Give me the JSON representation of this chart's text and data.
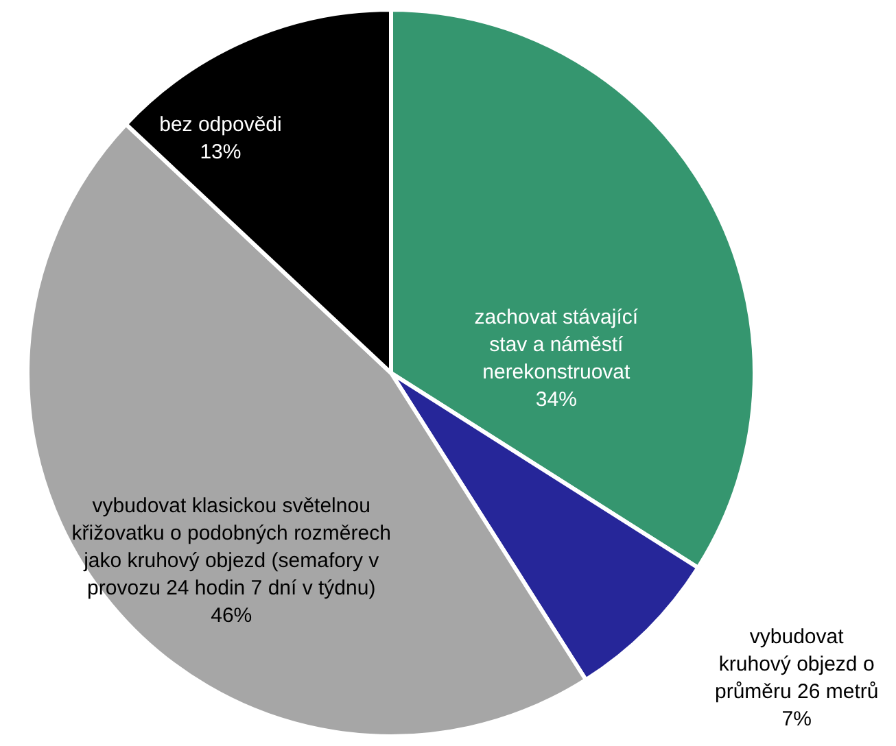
{
  "chart_data": {
    "type": "pie",
    "categories": [
      "zachovat stávající stav a náměstí nerekonstruovat",
      "vybudovat kruhový objezd o průměru 26 metrů",
      "vybudovat klasickou světelnou křižovatku o podobných rozměrech jako kruhový objezd (semafory v provozu 24 hodin 7 dní v týdnu)",
      "bez odpovědi"
    ],
    "values": [
      34,
      7,
      46,
      13
    ],
    "value_labels": [
      "34%",
      "7%",
      "46%",
      "13%"
    ],
    "colors": [
      "#35966f",
      "#262699",
      "#a6a6a6",
      "#000000"
    ]
  }
}
